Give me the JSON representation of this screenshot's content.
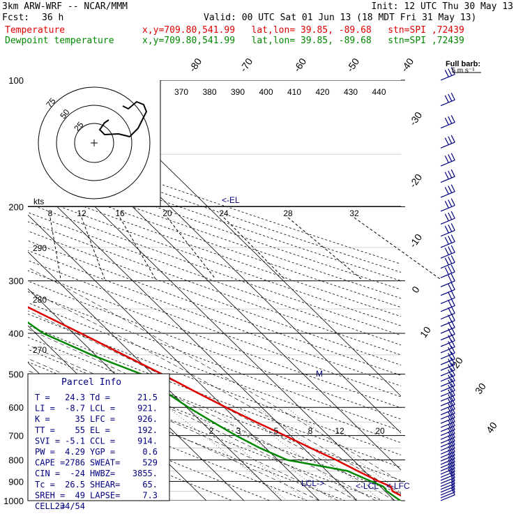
{
  "header": {
    "model": "3km ARW-WRF -- NCAR/MMM",
    "init": "Init: 12 UTC Thu 30 May 13",
    "fcst_label": "Fcst:",
    "fcst_value": "36 h",
    "valid": "Valid: 00 UTC Sat 01 Jun 13 (18 MDT Fri 31 May 13)",
    "temp_label": "Temperature",
    "dew_label": "Dewpoint temperature",
    "loc": "x,y=709.80,541.99   lat,lon= 39.85, -89.68   stn=SPI ,72439"
  },
  "colors": {
    "temperature": "#e00000",
    "dewpoint": "#008800",
    "annotation": "#000080"
  },
  "barb_note": [
    "Full barb:",
    "5 m s⁻¹"
  ],
  "parcel_info": {
    "title": "Parcel Info",
    "rows": [
      [
        "T  =",
        "24.3",
        "Td =",
        "21.5"
      ],
      [
        "LI =",
        "-8.7",
        "LCL =",
        "921."
      ],
      [
        "K  =",
        "35",
        "LFC =",
        "926."
      ],
      [
        "TT =",
        "55",
        "EL =",
        "192."
      ],
      [
        "SVI =",
        "-5.1",
        "CCL =",
        "914."
      ],
      [
        "PW =",
        "4.29",
        "YGP =",
        "0.6"
      ],
      [
        "CAPE =",
        "2786",
        "SWEAT=",
        "529"
      ],
      [
        "CIN =",
        "-24",
        "HWBZ=",
        "3855."
      ],
      [
        "Tc =",
        "26.5",
        "SHEAR=",
        "65."
      ],
      [
        "SREH =",
        "49",
        "LAPSE=",
        "7.3"
      ],
      [
        "CELL =",
        "234/54",
        "",
        ""
      ]
    ]
  },
  "chart_data": {
    "type": "skew-t",
    "pressure_levels": [
      100,
      200,
      300,
      400,
      500,
      600,
      700,
      800,
      900,
      1000
    ],
    "isotherm_labels": [
      "-80",
      "-70",
      "-60",
      "-50",
      "-40",
      "-30",
      "-20",
      "-10",
      "0",
      "10",
      "20",
      "30",
      "40"
    ],
    "theta_labels": [
      "370",
      "380",
      "390",
      "400",
      "410",
      "420",
      "430",
      "440"
    ],
    "mixing_ratio_labels": [
      "2",
      "3",
      "5",
      "8",
      "12",
      "20"
    ],
    "hodo_speed_labels": [
      "8",
      "12",
      "16",
      "20",
      "24",
      "28",
      "32"
    ],
    "hodo_ring_labels": [
      "75",
      "50",
      "25"
    ],
    "hodo_units": "kts",
    "theta_lower_labels": [
      "290",
      "280",
      "270"
    ],
    "annotations": [
      "<-EL",
      "LCL->",
      "<-LCL",
      "<-LFC",
      "M"
    ],
    "temperature": [
      {
        "p": 1000,
        "t": 24.3
      },
      {
        "p": 950,
        "t": 22.0
      },
      {
        "p": 925,
        "t": 22.8
      },
      {
        "p": 900,
        "t": 21.0
      },
      {
        "p": 850,
        "t": 18.2
      },
      {
        "p": 800,
        "t": 15.5
      },
      {
        "p": 750,
        "t": 12.0
      },
      {
        "p": 700,
        "t": 8.5
      },
      {
        "p": 650,
        "t": 4.5
      },
      {
        "p": 600,
        "t": 0.5
      },
      {
        "p": 550,
        "t": -3.5
      },
      {
        "p": 500,
        "t": -7.5
      },
      {
        "p": 450,
        "t": -12.5
      },
      {
        "p": 400,
        "t": -18.0
      },
      {
        "p": 350,
        "t": -24.5
      },
      {
        "p": 300,
        "t": -32.5
      },
      {
        "p": 250,
        "t": -42.0
      },
      {
        "p": 215,
        "t": -51.0
      },
      {
        "p": 200,
        "t": -53.5
      },
      {
        "p": 185,
        "t": -52.5
      },
      {
        "p": 175,
        "t": -49.5
      },
      {
        "p": 160,
        "t": -50.5
      },
      {
        "p": 140,
        "t": -54.0
      },
      {
        "p": 125,
        "t": -58.0
      },
      {
        "p": 110,
        "t": -60.5
      },
      {
        "p": 100,
        "t": -61.0
      }
    ],
    "dewpoint": [
      {
        "p": 1000,
        "t": 21.5
      },
      {
        "p": 950,
        "t": 20.5
      },
      {
        "p": 925,
        "t": 20.8
      },
      {
        "p": 900,
        "t": 19.0
      },
      {
        "p": 850,
        "t": 15.5
      },
      {
        "p": 800,
        "t": 2.5
      },
      {
        "p": 750,
        "t": -1.5
      },
      {
        "p": 700,
        "t": -4.5
      },
      {
        "p": 650,
        "t": -7.0
      },
      {
        "p": 600,
        "t": -9.5
      },
      {
        "p": 550,
        "t": -11.5
      },
      {
        "p": 500,
        "t": -13.0
      },
      {
        "p": 450,
        "t": -21.0
      },
      {
        "p": 400,
        "t": -28.0
      },
      {
        "p": 370,
        "t": -29.5
      },
      {
        "p": 350,
        "t": -32.0
      },
      {
        "p": 300,
        "t": -40.0
      },
      {
        "p": 250,
        "t": -52.0
      },
      {
        "p": 210,
        "t": -61.0
      },
      {
        "p": 190,
        "t": -60.0
      },
      {
        "p": 175,
        "t": -68.0
      },
      {
        "p": 160,
        "t": -77.0
      },
      {
        "p": 145,
        "t": -81.0
      },
      {
        "p": 130,
        "t": -82.0
      },
      {
        "p": 115,
        "t": -82.0
      },
      {
        "p": 100,
        "t": -81.0
      }
    ]
  }
}
